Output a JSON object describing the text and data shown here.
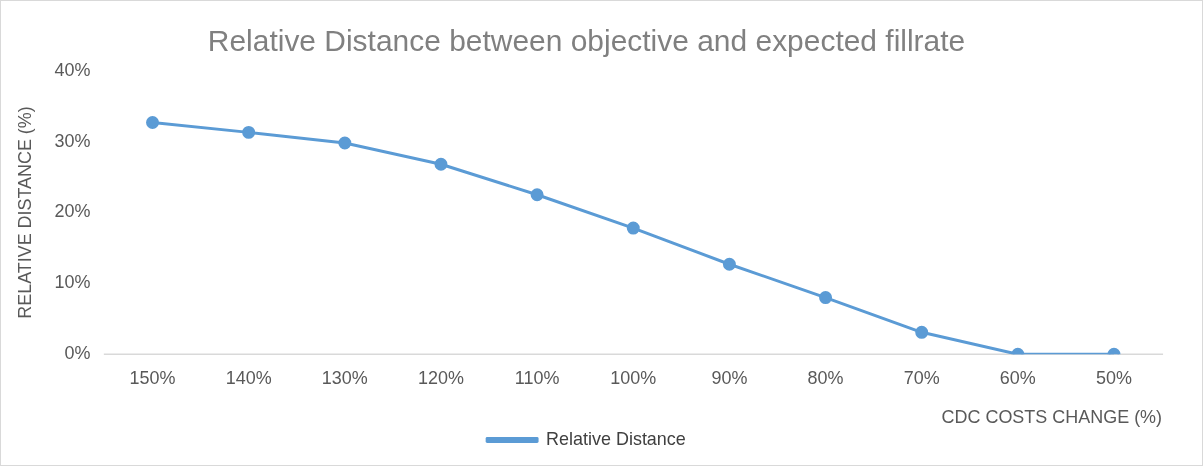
{
  "chart_data": {
    "type": "line",
    "title": "Relative Distance between objective and expected fillrate",
    "xlabel": "CDC COSTS CHANGE (%)",
    "ylabel": "RELATIVE DISTANCE (%)",
    "categories": [
      "150%",
      "140%",
      "130%",
      "120%",
      "110%",
      "100%",
      "90%",
      "80%",
      "70%",
      "60%",
      "50%"
    ],
    "series": [
      {
        "name": "Relative Distance",
        "color": "#5b9bd5",
        "values": [
          32.7,
          31.3,
          29.8,
          26.8,
          22.5,
          17.8,
          12.7,
          8.0,
          3.1,
          0,
          0
        ]
      }
    ],
    "ylim": [
      0,
      40
    ],
    "yticks": [
      {
        "value": 0,
        "label": "0%"
      },
      {
        "value": 10,
        "label": "10%"
      },
      {
        "value": 20,
        "label": "20%"
      },
      {
        "value": 30,
        "label": "30%"
      },
      {
        "value": 40,
        "label": "40%"
      }
    ],
    "grid": false,
    "legend": "bottom",
    "marker": "circle",
    "line_style": "solid"
  }
}
